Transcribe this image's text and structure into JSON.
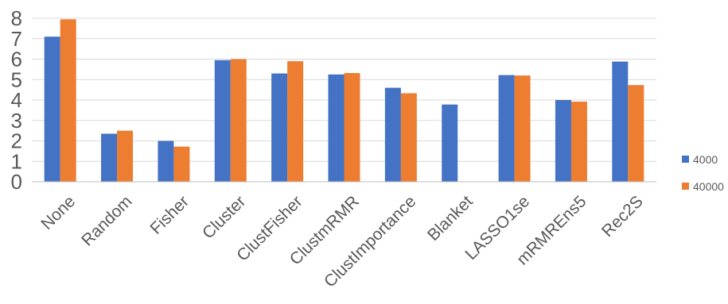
{
  "chart_data": {
    "type": "bar",
    "title": "",
    "xlabel": "",
    "ylabel": "",
    "categories": [
      "None",
      "Random",
      "Fisher",
      "Cluster",
      "ClustFisher",
      "ClustmRMR",
      "ClustImportance",
      "Blanket",
      "LASSO1se",
      "mRMREns5",
      "Rec2S"
    ],
    "series": [
      {
        "name": "4000",
        "color": "#4472C4",
        "values": [
          7.1,
          2.35,
          2.0,
          5.95,
          5.3,
          5.25,
          4.6,
          3.78,
          5.22,
          4.0,
          5.88
        ]
      },
      {
        "name": "40000",
        "color": "#ED7D31",
        "values": [
          7.95,
          2.5,
          1.72,
          6.0,
          5.9,
          5.32,
          4.33,
          null,
          5.2,
          3.92,
          4.73
        ]
      }
    ],
    "ylim": [
      0,
      8
    ],
    "yticks": [
      0,
      1,
      2,
      3,
      4,
      5,
      6,
      7,
      8
    ],
    "grid": true,
    "legend_position": "right"
  }
}
